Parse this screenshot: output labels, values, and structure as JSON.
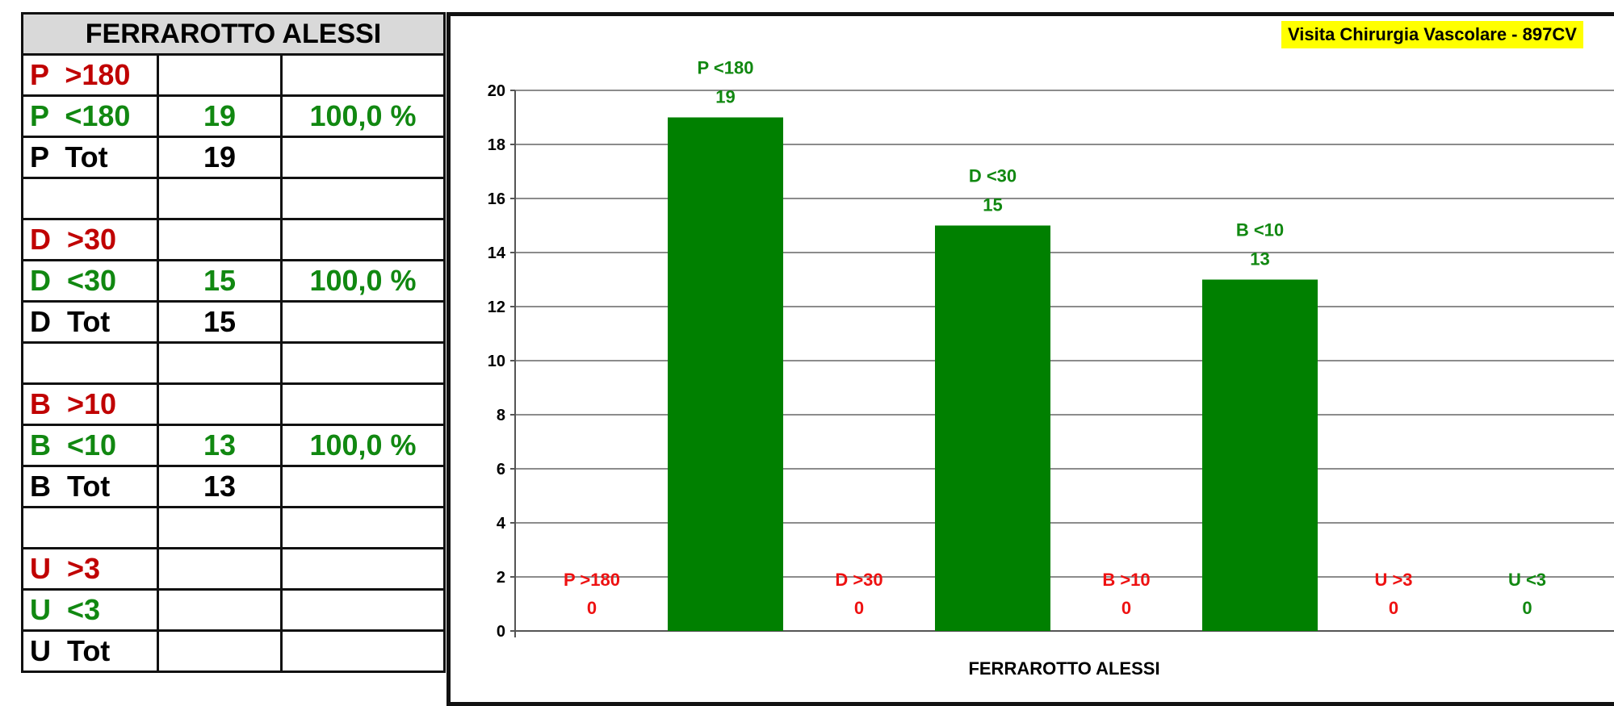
{
  "table": {
    "title": "FERRAROTTO ALESSI",
    "rows": [
      {
        "label": "P  >180",
        "value": "",
        "pct": "",
        "color": "red"
      },
      {
        "label": "P  <180",
        "value": "19",
        "pct": "100,0 %",
        "color": "green"
      },
      {
        "label": "P  Tot",
        "value": "19",
        "pct": "",
        "color": "black"
      },
      {
        "label": "",
        "value": "",
        "pct": "",
        "color": "black"
      },
      {
        "label": "D  >30",
        "value": "",
        "pct": "",
        "color": "red"
      },
      {
        "label": "D  <30",
        "value": "15",
        "pct": "100,0 %",
        "color": "green"
      },
      {
        "label": "D  Tot",
        "value": "15",
        "pct": "",
        "color": "black"
      },
      {
        "label": "",
        "value": "",
        "pct": "",
        "color": "black"
      },
      {
        "label": "B  >10",
        "value": "",
        "pct": "",
        "color": "red"
      },
      {
        "label": "B  <10",
        "value": "13",
        "pct": "100,0 %",
        "color": "green"
      },
      {
        "label": "B  Tot",
        "value": "13",
        "pct": "",
        "color": "black"
      },
      {
        "label": "",
        "value": "",
        "pct": "",
        "color": "black"
      },
      {
        "label": "U  >3",
        "value": "",
        "pct": "",
        "color": "red"
      },
      {
        "label": "U  <3",
        "value": "",
        "pct": "",
        "color": "green"
      },
      {
        "label": "U  Tot",
        "value": "",
        "pct": "",
        "color": "black"
      }
    ]
  },
  "tag": "Visita Chirurgia Vascolare - 897CV",
  "colors": {
    "over": "#ee1111",
    "under": "#118811",
    "bar": "#008000"
  },
  "chart_data": {
    "type": "bar",
    "title": "",
    "xlabel": "FERRAROTTO ALESSI",
    "ylabel": "",
    "ylim": [
      0,
      20
    ],
    "yticks": [
      0,
      2,
      4,
      6,
      8,
      10,
      12,
      14,
      16,
      18,
      20
    ],
    "grid": true,
    "categories": [
      "P >180",
      "P <180",
      "D >30",
      "D <30",
      "B >10",
      "B <10",
      "U >3",
      "U <3"
    ],
    "values": [
      0,
      19,
      0,
      15,
      0,
      13,
      0,
      0
    ],
    "data_labels": [
      "P >180",
      "P  <180",
      "D >30",
      "D  <30",
      "B >10",
      "B  <10",
      "U >3",
      "U <3"
    ],
    "label_colors": [
      "over",
      "under",
      "over",
      "under",
      "over",
      "under",
      "over",
      "under"
    ]
  }
}
